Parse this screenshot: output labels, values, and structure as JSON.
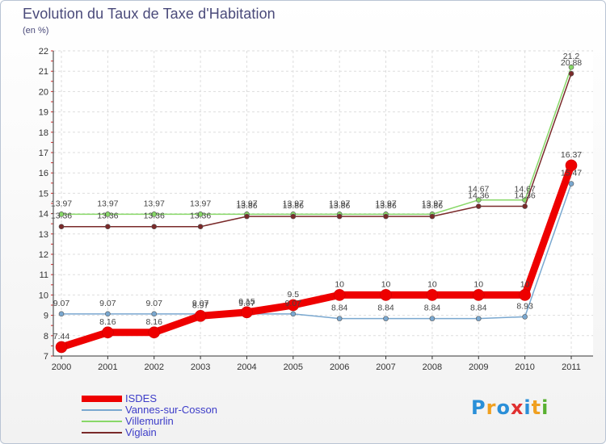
{
  "header": {
    "title": "Evolution du Taux de Taxe d'Habitation",
    "subtitle": "(en %)"
  },
  "brand": {
    "letters": [
      "P",
      "r",
      "o",
      "x",
      "i",
      "t",
      "i"
    ],
    "colors": [
      "#2a8fd8",
      "#f0a020",
      "#2a8fd8",
      "#e03030",
      "#2a8fd8",
      "#f0a020",
      "#58b030"
    ]
  },
  "chart_data": {
    "type": "line",
    "title": "Evolution du Taux de Taxe d'Habitation",
    "subtitle": "(en %)",
    "xlabel": "",
    "ylabel": "",
    "x": [
      "2000",
      "2001",
      "2002",
      "2003",
      "2004",
      "2005",
      "2006",
      "2007",
      "2008",
      "2009",
      "2010",
      "2011"
    ],
    "ylim": [
      7,
      22
    ],
    "yticks": [
      7,
      8,
      9,
      10,
      11,
      12,
      13,
      14,
      15,
      16,
      17,
      18,
      19,
      20,
      21,
      22
    ],
    "grid": true,
    "legend_position": "bottom-left",
    "series": [
      {
        "name": "ISDES",
        "color": "#ee0000",
        "values": [
          7.44,
          8.16,
          8.16,
          8.97,
          9.15,
          9.5,
          10,
          10,
          10,
          10,
          10,
          16.37
        ],
        "labels": [
          "7.44",
          "8.16",
          "8.16",
          "8.97",
          "9.15",
          "9.5",
          "10",
          "10",
          "10",
          "10",
          "10",
          "16.37"
        ]
      },
      {
        "name": "Vannes-sur-Cosson",
        "color": "#7aa8d0",
        "values": [
          9.07,
          9.07,
          9.07,
          9.07,
          9.07,
          9.07,
          8.84,
          8.84,
          8.84,
          8.84,
          8.93,
          15.47
        ],
        "labels": [
          "9.07",
          "9.07",
          "9.07",
          "9.07",
          "9.07",
          "9.07",
          "8.84",
          "8.84",
          "8.84",
          "8.84",
          "8.93",
          "15.47"
        ]
      },
      {
        "name": "Villemurlin",
        "color": "#88d868",
        "values": [
          13.97,
          13.97,
          13.97,
          13.97,
          13.97,
          13.97,
          13.97,
          13.97,
          13.97,
          14.67,
          14.67,
          21.2
        ],
        "labels": [
          "13.97",
          "13.97",
          "13.97",
          "13.97",
          "13.97",
          "13.97",
          "13.97",
          "13.97",
          "13.97",
          "14.67",
          "14.67",
          "21.2"
        ]
      },
      {
        "name": "Viglain",
        "color": "#7a2a2a",
        "values": [
          13.36,
          13.36,
          13.36,
          13.36,
          13.86,
          13.86,
          13.86,
          13.86,
          13.86,
          14.36,
          14.36,
          20.88
        ],
        "labels": [
          "13.36",
          "13.36",
          "13.36",
          "13.36",
          "13.86",
          "13.86",
          "13.86",
          "13.86",
          "13.86",
          "14.36",
          "14.36",
          "20.88"
        ]
      }
    ]
  }
}
